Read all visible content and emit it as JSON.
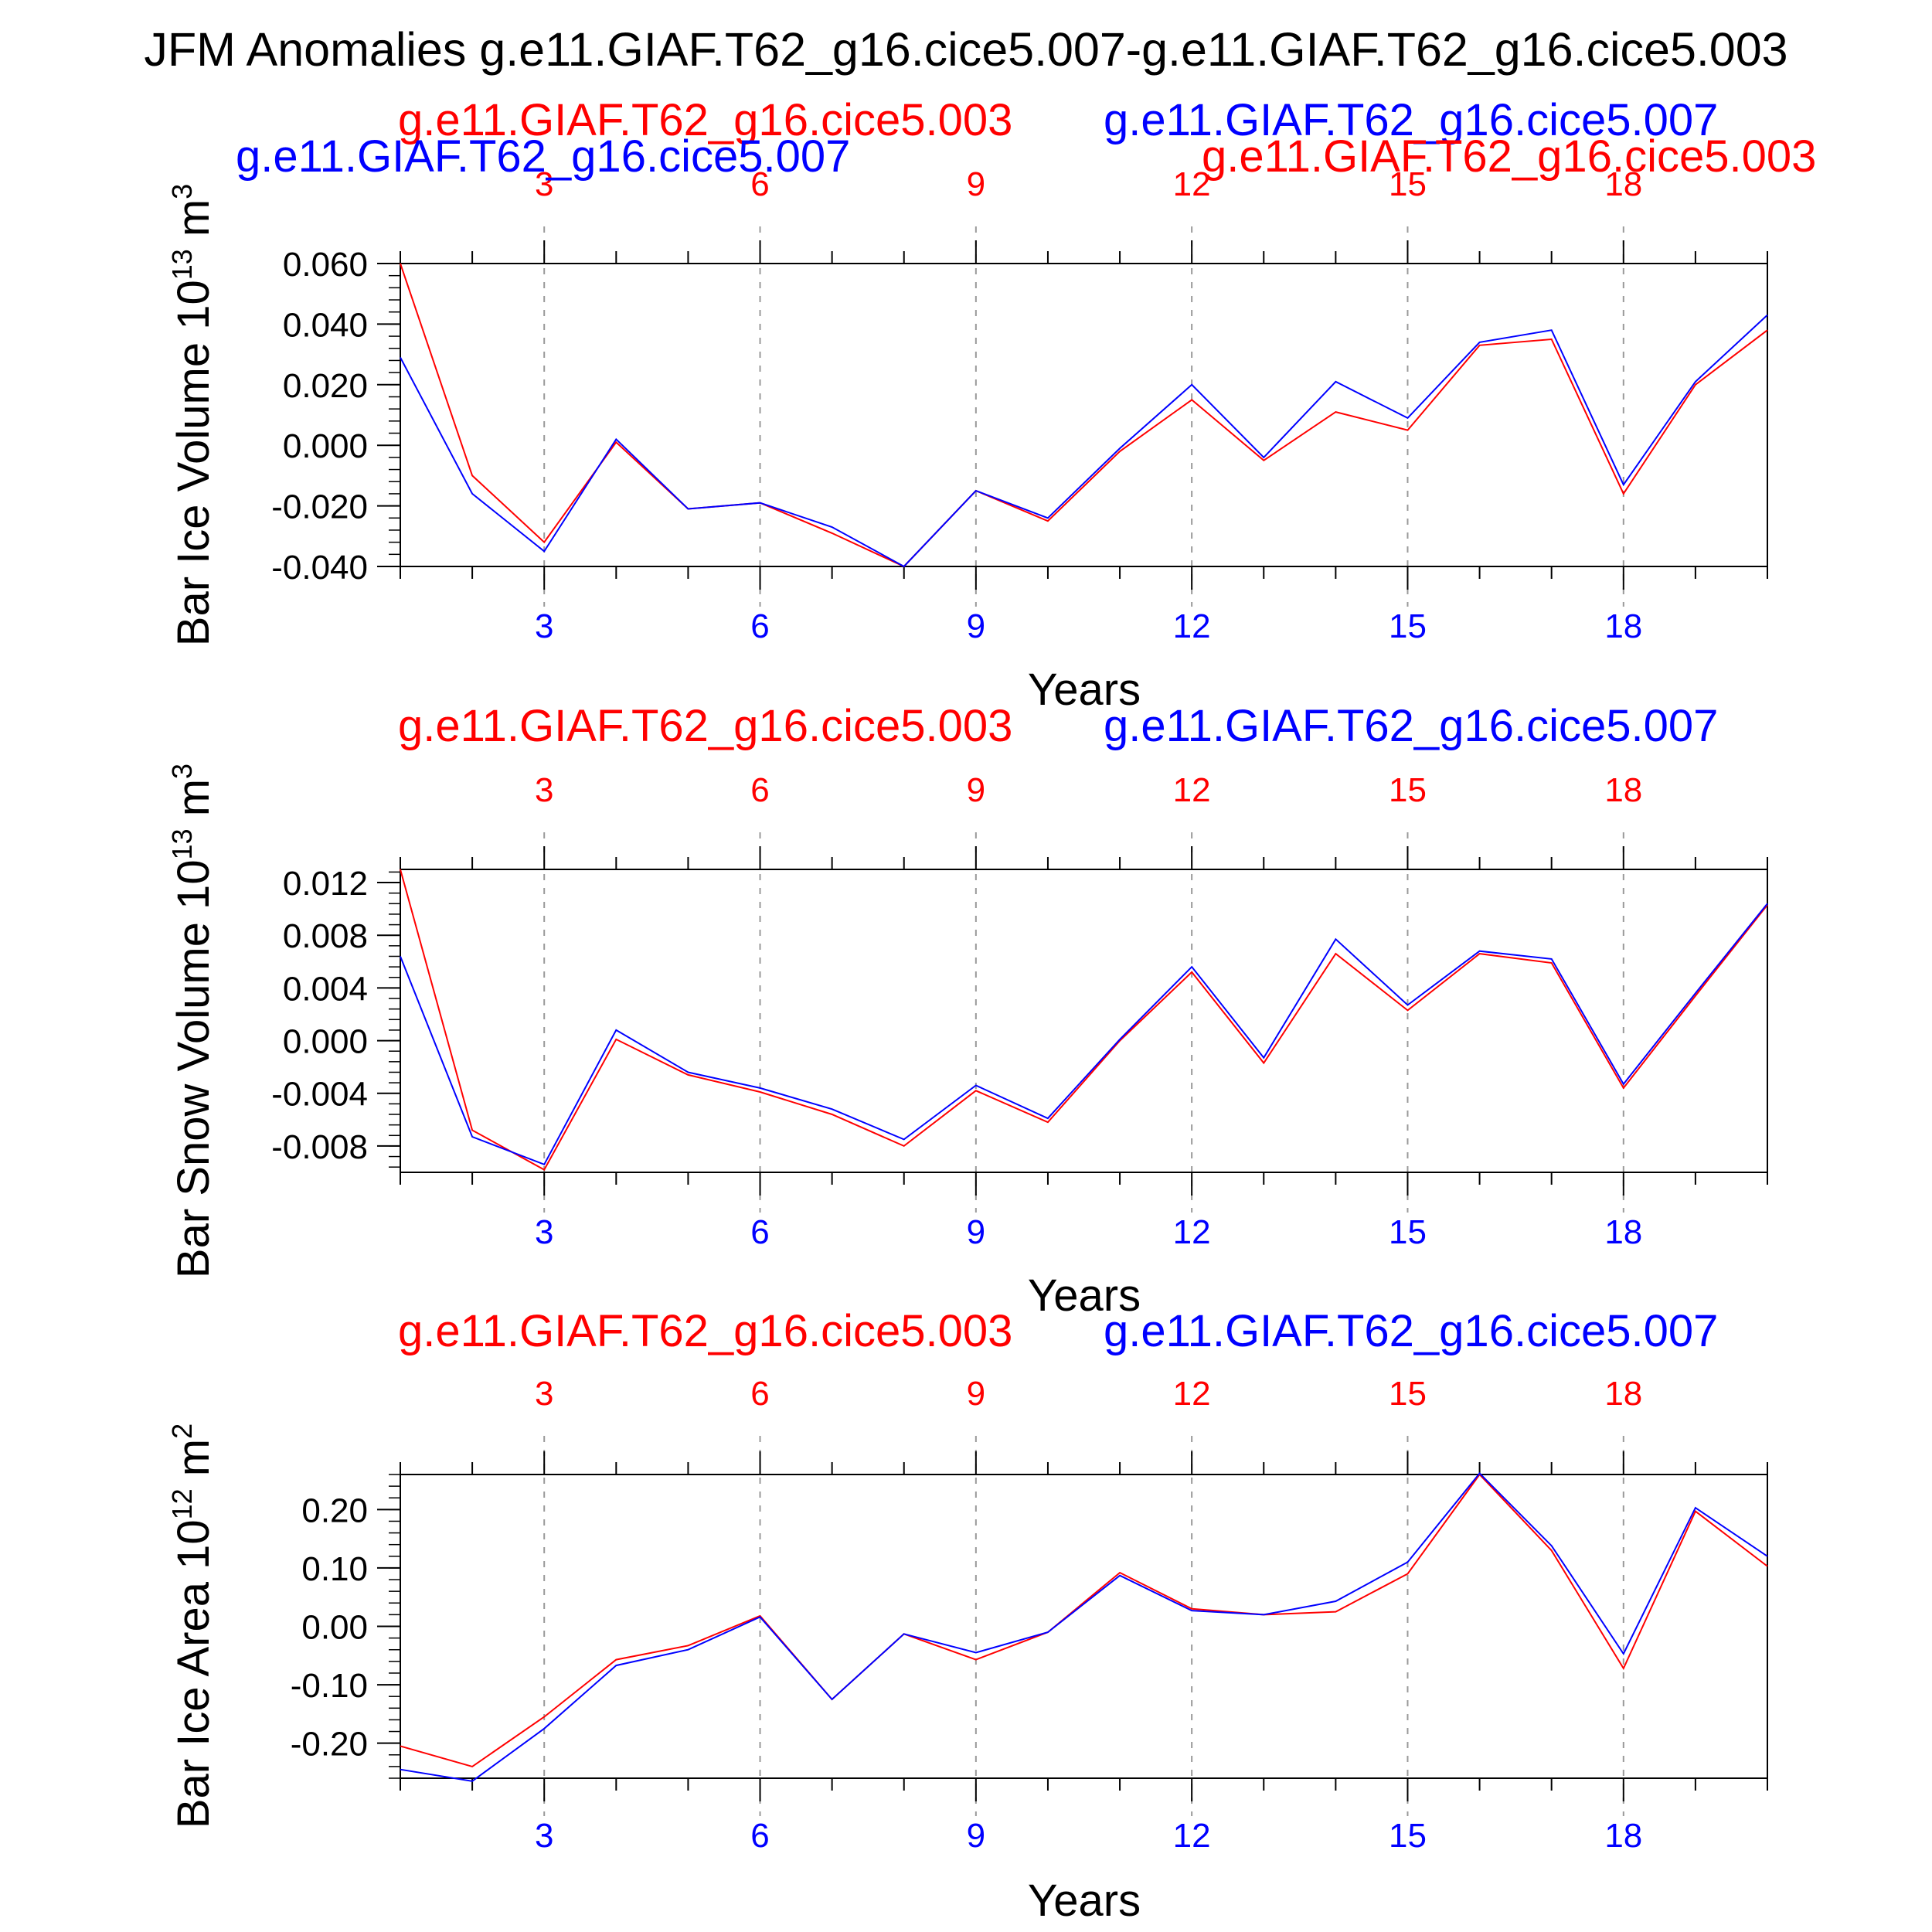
{
  "figure": {
    "title": "JFM Anomalies g.e11.GIAF.T62_g16.cice5.007-g.e11.GIAF.T62_g16.cice5.003"
  },
  "colors": {
    "run_003": "#ff0000",
    "run_007": "#0000ff",
    "text": "#000000",
    "grid": "#999999"
  },
  "chart_data": [
    {
      "type": "line",
      "title": "",
      "top_labels": {
        "left_red": "g.e11.GIAF.T62_g16.cice5.003",
        "right_blue": "g.e11.GIAF.T62_g16.cice5.007",
        "left_blue": "g.e11.GIAF.T62_g16.cice5.007",
        "right_red": "g.e11.GIAF.T62_g16.cice5.003"
      },
      "xlabel": "Years",
      "ylabel_main": "Bar Ice Volume 10",
      "ylabel_exp": "13",
      "ylabel_unit": " m",
      "ylabel_unit_exp": "3",
      "xlim": [
        1,
        20
      ],
      "xticks": [
        3,
        6,
        9,
        12,
        15,
        18
      ],
      "xtick_labels": [
        "3",
        "6",
        "9",
        "12",
        "15",
        "18"
      ],
      "ylim": [
        -0.04,
        0.06
      ],
      "yticks": [
        -0.04,
        -0.02,
        0.0,
        0.02,
        0.04,
        0.06
      ],
      "ytick_labels": [
        "-0.040",
        "-0.020",
        "0.000",
        "0.020",
        "0.040",
        "0.060"
      ],
      "grid": "dashed vertical lines at labeled x ticks",
      "x": [
        1,
        2,
        3,
        4,
        5,
        6,
        7,
        8,
        9,
        10,
        11,
        12,
        13,
        14,
        15,
        16,
        17,
        18,
        19,
        20
      ],
      "series": [
        {
          "name": "g.e11.GIAF.T62_g16.cice5.003",
          "color": "#ff0000",
          "values": [
            0.06,
            -0.01,
            -0.032,
            0.001,
            -0.021,
            -0.019,
            -0.029,
            -0.04,
            -0.015,
            -0.025,
            -0.002,
            0.015,
            -0.005,
            0.011,
            0.005,
            0.033,
            0.035,
            -0.016,
            0.02,
            0.038
          ]
        },
        {
          "name": "g.e11.GIAF.T62_g16.cice5.007",
          "color": "#0000ff",
          "values": [
            0.029,
            -0.016,
            -0.035,
            0.002,
            -0.021,
            -0.019,
            -0.027,
            -0.04,
            -0.015,
            -0.024,
            -0.001,
            0.02,
            -0.004,
            0.021,
            0.009,
            0.034,
            0.038,
            -0.013,
            0.021,
            0.043
          ]
        }
      ]
    },
    {
      "type": "line",
      "title": "",
      "top_labels": {
        "left_red": "g.e11.GIAF.T62_g16.cice5.003",
        "right_blue": "g.e11.GIAF.T62_g16.cice5.007"
      },
      "xlabel": "Years",
      "ylabel_main": "Bar Snow Volume 10",
      "ylabel_exp": "13",
      "ylabel_unit": " m",
      "ylabel_unit_exp": "3",
      "xlim": [
        1,
        20
      ],
      "xticks": [
        3,
        6,
        9,
        12,
        15,
        18
      ],
      "xtick_labels": [
        "3",
        "6",
        "9",
        "12",
        "15",
        "18"
      ],
      "ylim": [
        -0.01,
        0.013
      ],
      "yticks": [
        -0.008,
        -0.004,
        0.0,
        0.004,
        0.008,
        0.012
      ],
      "ytick_labels": [
        "-0.008",
        "-0.004",
        "0.000",
        "0.004",
        "0.008",
        "0.012"
      ],
      "grid": "dashed vertical lines at labeled x ticks",
      "x": [
        1,
        2,
        3,
        4,
        5,
        6,
        7,
        8,
        9,
        10,
        11,
        12,
        13,
        14,
        15,
        16,
        17,
        18,
        19,
        20
      ],
      "series": [
        {
          "name": "g.e11.GIAF.T62_g16.cice5.003",
          "color": "#ff0000",
          "values": [
            0.013,
            -0.0068,
            -0.0098,
            0.0001,
            -0.0026,
            -0.0039,
            -0.0056,
            -0.008,
            -0.0038,
            -0.0062,
            0.0,
            0.0052,
            -0.0017,
            0.0066,
            0.0023,
            0.0066,
            0.0059,
            -0.0036,
            0.0034,
            0.0103
          ]
        },
        {
          "name": "g.e11.GIAF.T62_g16.cice5.007",
          "color": "#0000ff",
          "values": [
            0.0064,
            -0.0073,
            -0.0094,
            0.0008,
            -0.0024,
            -0.0036,
            -0.0052,
            -0.0075,
            -0.0034,
            -0.0059,
            0.0001,
            0.0056,
            -0.0013,
            0.0077,
            0.0027,
            0.0068,
            0.0062,
            -0.0033,
            0.0036,
            0.0104
          ]
        }
      ]
    },
    {
      "type": "line",
      "title": "",
      "top_labels": {
        "left_red": "g.e11.GIAF.T62_g16.cice5.003",
        "right_blue": "g.e11.GIAF.T62_g16.cice5.007"
      },
      "xlabel": "Years",
      "ylabel_main": "Bar Ice Area 10",
      "ylabel_exp": "12",
      "ylabel_unit": " m",
      "ylabel_unit_exp": "2",
      "xlim": [
        1,
        20
      ],
      "xticks": [
        3,
        6,
        9,
        12,
        15,
        18
      ],
      "xtick_labels": [
        "3",
        "6",
        "9",
        "12",
        "15",
        "18"
      ],
      "ylim": [
        -0.26,
        0.26
      ],
      "yticks": [
        -0.2,
        -0.1,
        0.0,
        0.1,
        0.2
      ],
      "ytick_labels": [
        "-0.20",
        "-0.10",
        "0.00",
        "0.10",
        "0.20"
      ],
      "grid": "dashed vertical lines at labeled x ticks",
      "x": [
        1,
        2,
        3,
        4,
        5,
        6,
        7,
        8,
        9,
        10,
        11,
        12,
        13,
        14,
        15,
        16,
        17,
        18,
        19,
        20
      ],
      "series": [
        {
          "name": "g.e11.GIAF.T62_g16.cice5.003",
          "color": "#ff0000",
          "values": [
            -0.205,
            -0.24,
            -0.155,
            -0.057,
            -0.033,
            0.018,
            -0.125,
            -0.013,
            -0.057,
            -0.01,
            0.092,
            0.03,
            0.02,
            0.025,
            0.09,
            0.26,
            0.13,
            -0.072,
            0.197,
            0.103
          ]
        },
        {
          "name": "g.e11.GIAF.T62_g16.cice5.007",
          "color": "#0000ff",
          "values": [
            -0.245,
            -0.265,
            -0.175,
            -0.067,
            -0.04,
            0.016,
            -0.125,
            -0.013,
            -0.045,
            -0.01,
            0.087,
            0.027,
            0.02,
            0.043,
            0.11,
            0.262,
            0.138,
            -0.047,
            0.203,
            0.12
          ]
        }
      ]
    }
  ]
}
